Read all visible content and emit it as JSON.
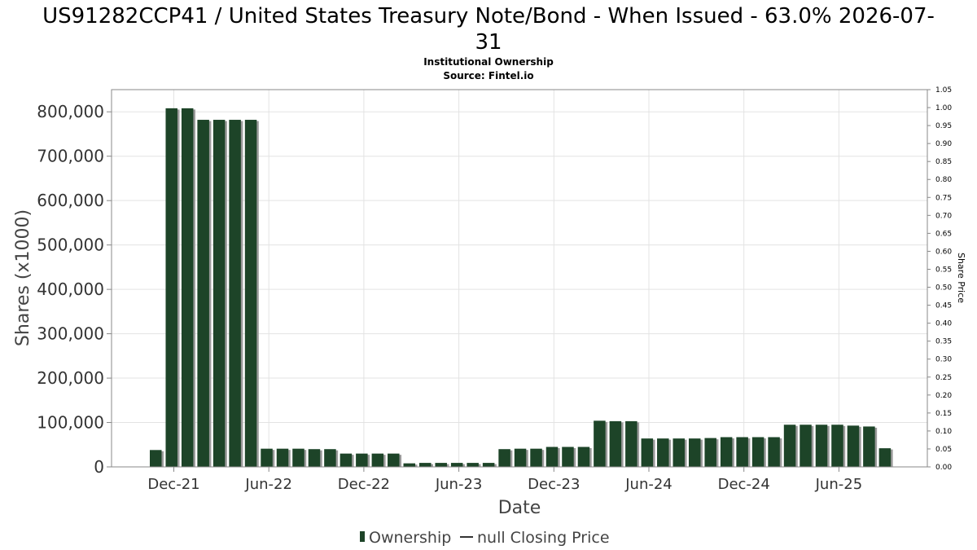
{
  "chart_data": {
    "type": "bar",
    "title": "US91282CCP41 / United States Treasury Note/Bond - When Issued - 63.0% 2026-07-",
    "title_line2": "31",
    "subtitle": "Institutional Ownership",
    "source": "Source: Fintel.io",
    "xlabel": "Date",
    "ylabel": "Shares (x1000)",
    "y2label": "Share Price",
    "ylim": [
      0,
      850000
    ],
    "y2lim": [
      0,
      1.05
    ],
    "yticks": [
      0,
      100000,
      200000,
      300000,
      400000,
      500000,
      600000,
      700000,
      800000
    ],
    "ytick_labels": [
      "0",
      "100,000",
      "200,000",
      "300,000",
      "400,000",
      "500,000",
      "600,000",
      "700,000",
      "800,000"
    ],
    "y2ticks": [
      "0.00",
      "0.05",
      "0.10",
      "0.15",
      "0.20",
      "0.25",
      "0.30",
      "0.35",
      "0.40",
      "0.45",
      "0.50",
      "0.55",
      "0.60",
      "0.65",
      "0.70",
      "0.75",
      "0.80",
      "0.85",
      "0.90",
      "0.95",
      "1.00",
      "1.05"
    ],
    "xtick_labels": [
      "Dec-21",
      "Jun-22",
      "Dec-22",
      "Jun-23",
      "Dec-23",
      "Jun-24",
      "Dec-24",
      "Jun-25"
    ],
    "grid": true,
    "legend_position": "bottom",
    "series": [
      {
        "name": "Ownership",
        "color": "#1d4428",
        "values": [
          38000,
          808000,
          808000,
          782000,
          782000,
          782000,
          782000,
          41000,
          41000,
          41000,
          40000,
          40000,
          30000,
          30000,
          30000,
          30000,
          8000,
          9000,
          9000,
          9000,
          9000,
          9000,
          40000,
          41000,
          41000,
          45000,
          45000,
          45000,
          104000,
          103000,
          103000,
          64000,
          64000,
          64000,
          64000,
          65000,
          67000,
          67000,
          67000,
          67000,
          95000,
          95000,
          95000,
          95000,
          93000,
          91000,
          42000
        ]
      },
      {
        "name": "null Closing Price",
        "color": "#333333",
        "values": []
      }
    ]
  }
}
